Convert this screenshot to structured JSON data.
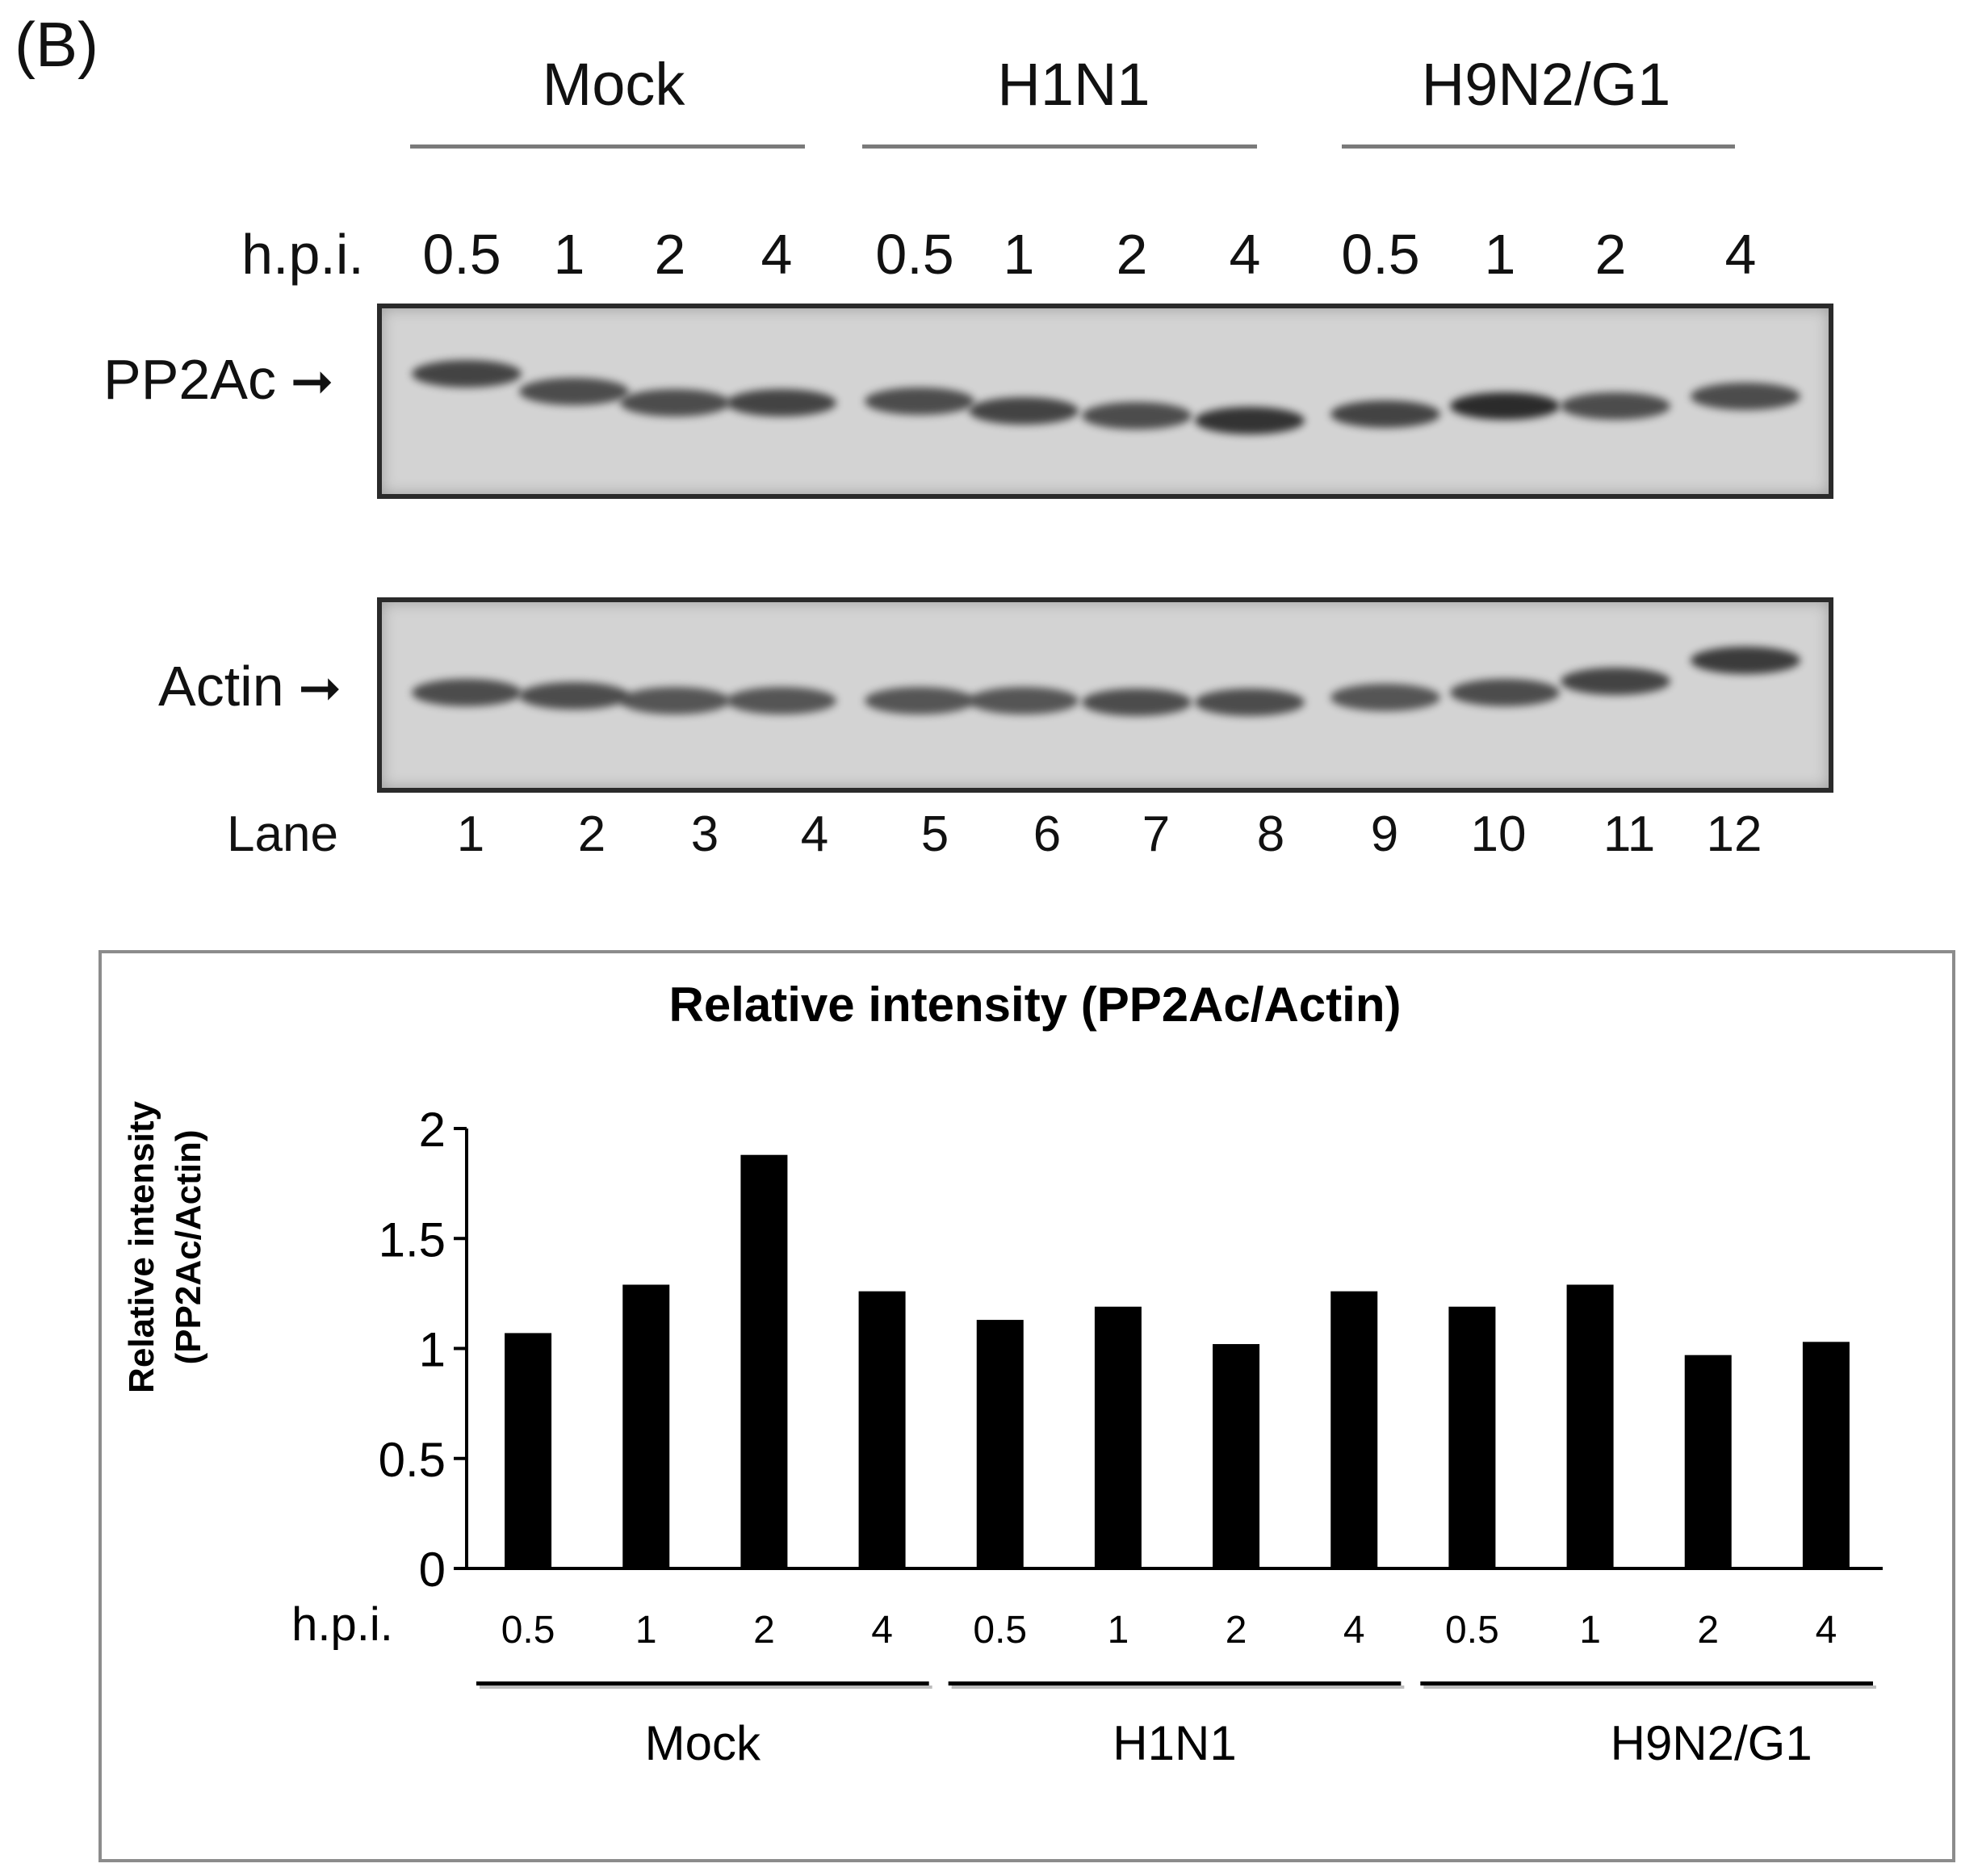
{
  "panel_letter": "(B)",
  "groups": [
    "Mock",
    "H1N1",
    "H9N2/G1"
  ],
  "hpi_label": "h.p.i.",
  "hpi_values": [
    "0.5",
    "1",
    "2",
    "4",
    "0.5",
    "1",
    "2",
    "4",
    "0.5",
    "1",
    "2",
    "4"
  ],
  "blots": {
    "top_label": "PP2Ac",
    "bottom_label": "Actin",
    "top_band_intensity": [
      0.85,
      0.8,
      0.8,
      0.85,
      0.8,
      0.85,
      0.8,
      0.95,
      0.85,
      1.0,
      0.8,
      0.8
    ],
    "bottom_band_intensity": [
      0.8,
      0.8,
      0.75,
      0.75,
      0.75,
      0.75,
      0.8,
      0.8,
      0.75,
      0.8,
      0.85,
      0.9
    ]
  },
  "lane_label": "Lane",
  "lanes": [
    "1",
    "2",
    "3",
    "4",
    "5",
    "6",
    "7",
    "8",
    "9",
    "10",
    "11",
    "12"
  ],
  "chart_data": {
    "type": "bar",
    "title": "Relative intensity (PP2Ac/Actin)",
    "ylabel_line1": "Relative intensity",
    "ylabel_line2": "(PP2Ac/Actin)",
    "xlabel": "h.p.i.",
    "categories": [
      "0.5",
      "1",
      "2",
      "4",
      "0.5",
      "1",
      "2",
      "4",
      "0.5",
      "1",
      "2",
      "4"
    ],
    "groups": [
      {
        "name": "Mock",
        "start": 0,
        "end": 3
      },
      {
        "name": "H1N1",
        "start": 4,
        "end": 7
      },
      {
        "name": "H9N2/G1",
        "start": 8,
        "end": 11
      }
    ],
    "values": [
      1.07,
      1.29,
      1.88,
      1.26,
      1.13,
      1.19,
      1.02,
      1.26,
      1.19,
      1.29,
      0.97,
      1.03
    ],
    "ylim": [
      0,
      2
    ],
    "yticks": [
      "0",
      "0.5",
      "1",
      "1.5",
      "2"
    ],
    "bar_color": "#000000",
    "grid": false
  }
}
